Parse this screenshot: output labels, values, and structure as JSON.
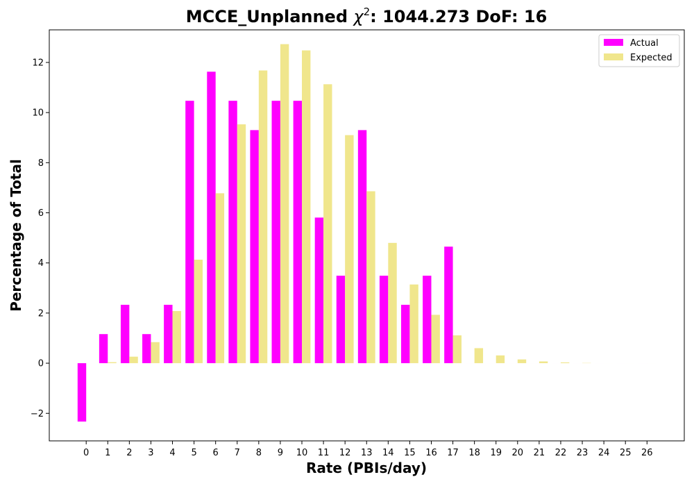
{
  "chart_data": {
    "type": "bar",
    "title_prefix": "MCCE_Unplanned ",
    "title_symbol": "χ",
    "title_superscript": "2",
    "title_suffix": ": 1044.273 DoF: 16",
    "xlabel": "Rate (PBIs/day)",
    "ylabel": "Percentage of Total",
    "categories": [
      "0",
      "1",
      "2",
      "3",
      "4",
      "5",
      "6",
      "7",
      "8",
      "9",
      "10",
      "11",
      "12",
      "13",
      "14",
      "15",
      "16",
      "17",
      "18",
      "19",
      "20",
      "21",
      "22",
      "23",
      "24",
      "25",
      "26"
    ],
    "ylim": [
      -3.1,
      13.3
    ],
    "yticks": [
      -2,
      0,
      2,
      4,
      6,
      8,
      10,
      12
    ],
    "ytick_labels": [
      "−2",
      "0",
      "2",
      "4",
      "6",
      "8",
      "10",
      "12"
    ],
    "legend_position": "top-right",
    "grid": false,
    "series": [
      {
        "name": "Actual",
        "color": "#ff00ff",
        "values": [
          -2.33,
          1.16,
          2.33,
          1.16,
          2.33,
          10.47,
          11.63,
          10.47,
          9.3,
          10.47,
          10.47,
          5.81,
          3.49,
          9.3,
          3.49,
          2.33,
          3.49,
          4.65,
          0,
          0,
          0,
          0,
          0,
          0,
          0,
          0,
          0
        ]
      },
      {
        "name": "Expected",
        "color": "#f0e68c",
        "values": [
          0.0,
          0.04,
          0.26,
          0.84,
          2.08,
          4.13,
          6.78,
          9.53,
          11.68,
          12.73,
          12.48,
          11.13,
          9.1,
          6.86,
          4.8,
          3.14,
          1.93,
          1.11,
          0.6,
          0.31,
          0.15,
          0.07,
          0.03,
          0.01,
          0.0,
          0.0,
          0.0
        ]
      }
    ]
  }
}
